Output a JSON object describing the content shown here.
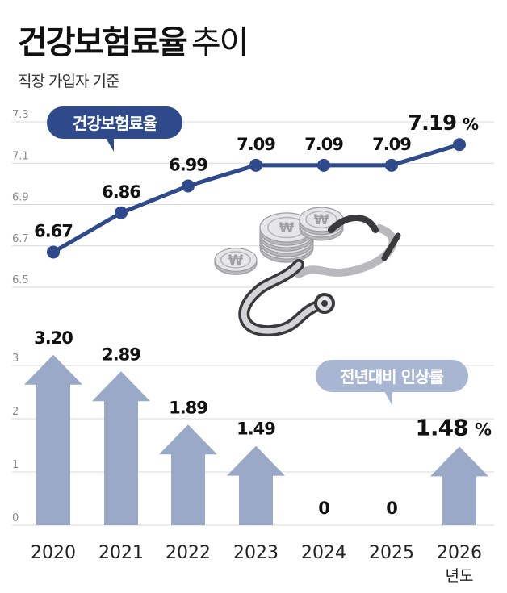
{
  "header": {
    "title_main": "건강보험료율",
    "title_light": "추이",
    "subtitle": "직장 가입자 기준"
  },
  "colors": {
    "line": "#2e4a8a",
    "badge_line": "#2e4a8a",
    "arrow": "#9aa9c8",
    "badge_bar": "#a9b6d2",
    "grid": "#d9d9d9",
    "axis_text": "#8a8a8a",
    "icon_dark": "#3a3a3c",
    "icon_light": "#e6e6e8",
    "icon_mid": "#b9b9bd"
  },
  "illustration": {
    "icon": "stethoscope-with-won-coins-icon",
    "coin_symbol": "₩"
  },
  "chart_data": [
    {
      "type": "line",
      "badge": "건강보험료율",
      "x": [
        "2020",
        "2021",
        "2022",
        "2023",
        "2024",
        "2025",
        "2026"
      ],
      "values": [
        6.67,
        6.86,
        6.99,
        7.09,
        7.09,
        7.09,
        7.19
      ],
      "value_labels": [
        "6.67",
        "6.86",
        "6.99",
        "7.09",
        "7.09",
        "7.09",
        "7.19"
      ],
      "last_unit": "%",
      "yticks": [
        "6.5",
        "6.7",
        "6.9",
        "7.1",
        "7.3"
      ],
      "ylim": [
        6.5,
        7.3
      ],
      "grid": true
    },
    {
      "type": "bar",
      "badge": "전년대비 인상률",
      "categories": [
        "2020",
        "2021",
        "2022",
        "2023",
        "2024",
        "2025",
        "2026"
      ],
      "values": [
        3.2,
        2.89,
        1.89,
        1.49,
        0,
        0,
        1.48
      ],
      "value_labels": [
        "3.20",
        "2.89",
        "1.89",
        "1.49",
        "0",
        "0",
        "1.48"
      ],
      "last_unit": "%",
      "yticks": [
        "0",
        "1",
        "2",
        "3"
      ],
      "ylim": [
        0,
        3.5
      ],
      "xlabel": "년도",
      "grid": true
    }
  ]
}
